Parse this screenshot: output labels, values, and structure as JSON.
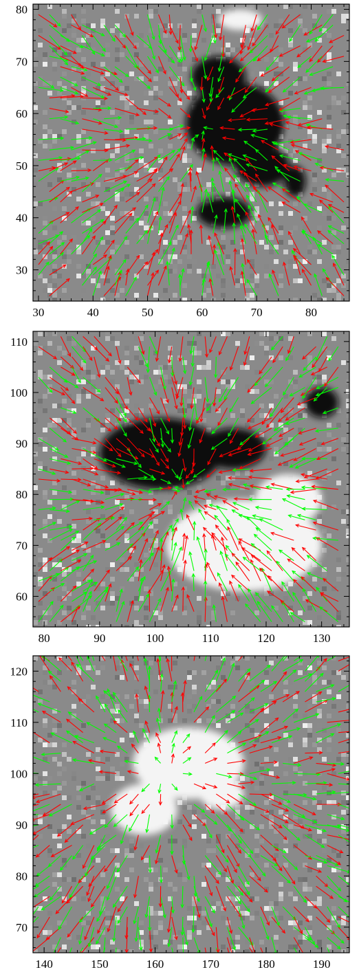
{
  "colors": {
    "series_a": "#ff0000",
    "series_b": "#00ff00",
    "background": "#ffffff",
    "axis": "#000000"
  },
  "chart_data": [
    {
      "type": "vector-field",
      "panel": "top",
      "title": "",
      "xlabel": "",
      "ylabel": "",
      "xlim": [
        29,
        87
      ],
      "ylim": [
        24,
        81
      ],
      "xticks": [
        30,
        40,
        50,
        60,
        70,
        80
      ],
      "yticks": [
        30,
        40,
        50,
        60,
        70,
        80
      ],
      "background": "grayscale magnetogram, dominant negative (dark) polarity",
      "dark_blobs": [
        {
          "x": 66,
          "y": 58,
          "rx": 9,
          "ry": 8
        },
        {
          "x": 63,
          "y": 67,
          "rx": 5,
          "ry": 4
        },
        {
          "x": 71,
          "y": 50,
          "rx": 5,
          "ry": 4
        },
        {
          "x": 64,
          "y": 41,
          "rx": 5,
          "ry": 3
        },
        {
          "x": 77,
          "y": 47,
          "rx": 2,
          "ry": 3
        }
      ],
      "bright_blobs": [
        {
          "x": 67,
          "y": 78,
          "rx": 4,
          "ry": 2
        }
      ],
      "field_center": [
        60,
        57
      ],
      "field_direction": "inward",
      "grid_step": 2,
      "series": [
        {
          "name": "",
          "color": "#ff0000"
        },
        {
          "name": "",
          "color": "#00ff00"
        }
      ]
    },
    {
      "type": "vector-field",
      "panel": "middle",
      "title": "",
      "xlabel": "",
      "ylabel": "",
      "xlim": [
        78,
        135
      ],
      "ylim": [
        54,
        112
      ],
      "xticks": [
        80,
        90,
        100,
        110,
        120,
        130
      ],
      "yticks": [
        60,
        70,
        80,
        90,
        100,
        110
      ],
      "background": "grayscale magnetogram, negative umbra above positive plage",
      "dark_blobs": [
        {
          "x": 101,
          "y": 88,
          "rx": 11,
          "ry": 7
        },
        {
          "x": 114,
          "y": 89,
          "rx": 6,
          "ry": 4
        },
        {
          "x": 130,
          "y": 98,
          "rx": 3,
          "ry": 3
        }
      ],
      "bright_blobs": [
        {
          "x": 116,
          "y": 70,
          "rx": 14,
          "ry": 9
        },
        {
          "x": 124,
          "y": 79,
          "rx": 6,
          "ry": 5
        }
      ],
      "field_center": [
        105,
        81
      ],
      "field_direction": "inward",
      "grid_step": 2,
      "series": [
        {
          "name": "",
          "color": "#ff0000"
        },
        {
          "name": "",
          "color": "#00ff00"
        }
      ]
    },
    {
      "type": "vector-field",
      "panel": "bottom",
      "title": "",
      "xlabel": "",
      "ylabel": "",
      "xlim": [
        138,
        195
      ],
      "ylim": [
        65,
        123
      ],
      "xticks": [
        140,
        150,
        160,
        170,
        180,
        190
      ],
      "yticks": [
        70,
        80,
        90,
        100,
        110,
        120
      ],
      "background": "grayscale magnetogram, dominant positive (bright) polarity",
      "dark_blobs": [],
      "bright_blobs": [
        {
          "x": 166,
          "y": 102,
          "rx": 10,
          "ry": 7
        },
        {
          "x": 158,
          "y": 93,
          "rx": 6,
          "ry": 5
        },
        {
          "x": 172,
          "y": 96,
          "rx": 4,
          "ry": 3
        }
      ],
      "field_center": [
        162,
        100
      ],
      "field_direction": "outward",
      "grid_step": 2,
      "series": [
        {
          "name": "",
          "color": "#ff0000"
        },
        {
          "name": "",
          "color": "#00ff00"
        }
      ]
    }
  ]
}
